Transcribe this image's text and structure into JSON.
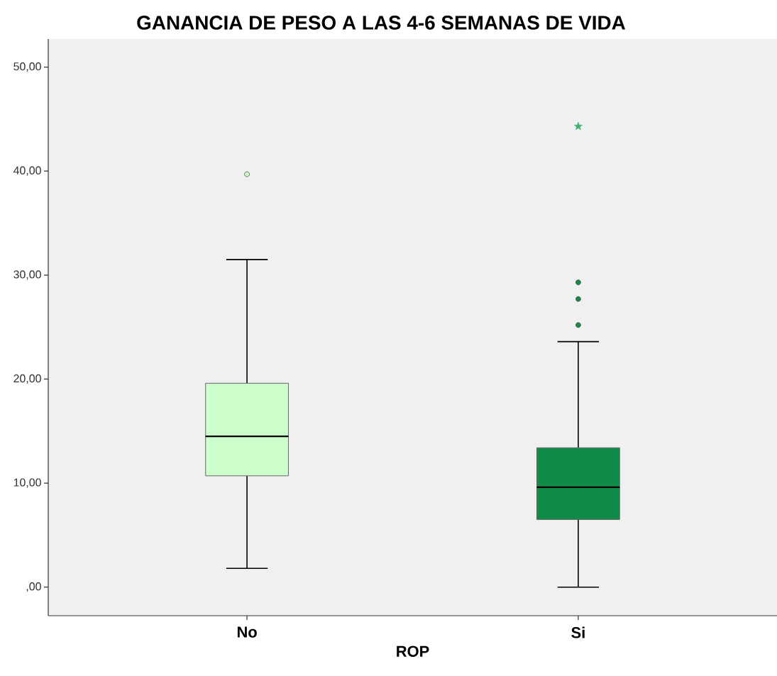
{
  "chart_data": {
    "type": "box",
    "title": "GANANCIA DE PESO A LAS 4-6 SEMANAS DE VIDA",
    "xlabel": "ROP",
    "categories": [
      "No",
      "Si"
    ],
    "colors": [
      "#ccffcc",
      "#108c48"
    ],
    "boxes": [
      {
        "low": 1.8,
        "q1": 10.7,
        "median": 14.5,
        "q3": 19.6,
        "high": 31.5,
        "outliers": [
          39.7
        ]
      },
      {
        "low": 0,
        "q1": 6.5,
        "median": 9.6,
        "q3": 13.4,
        "high": 23.6,
        "outliers": [
          29.3,
          27.7,
          25.2
        ]
      }
    ],
    "series": [
      {
        "type": "scatter",
        "x": [
          "Si"
        ],
        "values": [
          44.3
        ],
        "marker": "star",
        "color": "#3cb371"
      }
    ],
    "ylim": [
      -2.75,
      52.7
    ],
    "yticks": [
      {
        "value": 0,
        "label": ",00"
      },
      {
        "value": 10,
        "label": "10,00"
      },
      {
        "value": 20,
        "label": "20,00"
      },
      {
        "value": 30,
        "label": "30,00"
      },
      {
        "value": 40,
        "label": "40,00"
      },
      {
        "value": 50,
        "label": "50,00"
      }
    ]
  }
}
